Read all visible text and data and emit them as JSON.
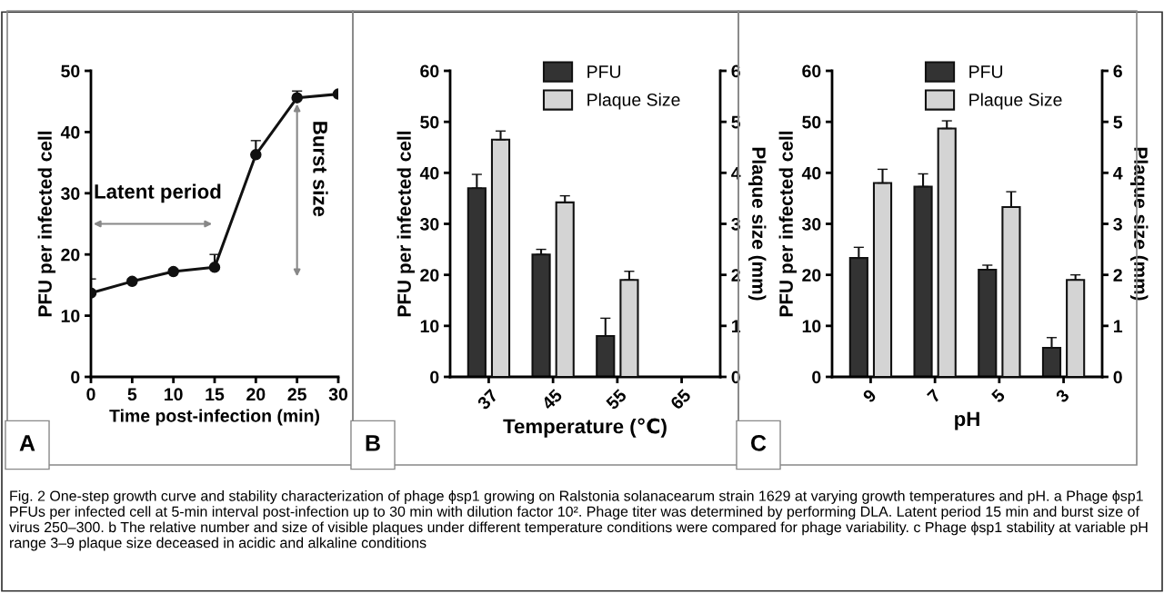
{
  "chart_data": [
    {
      "type": "line",
      "xlabel": "Time post-infection (min)",
      "ylabel": "PFU per infected cell",
      "x": [
        0,
        5,
        10,
        15,
        20,
        25,
        30
      ],
      "series": [
        {
          "color": "#111111",
          "values": [
            13.7,
            15.6,
            17.2,
            17.9,
            36.3,
            45.6,
            46.2
          ],
          "errors": [
            [
              13.7,
              16.0
            ],
            [
              15.6,
              16.0
            ],
            [
              17.2,
              17.6
            ],
            [
              17.9,
              20.0
            ],
            [
              36.3,
              38.6
            ],
            [
              45.6,
              46.7
            ],
            [
              46.2,
              46.5
            ]
          ]
        }
      ],
      "xlim": [
        0,
        30
      ],
      "xticks": [
        0,
        5,
        10,
        15,
        20,
        25,
        30
      ],
      "ylim": [
        0,
        50
      ],
      "yticks": [
        0,
        10,
        20,
        30,
        40,
        50
      ],
      "marker": "circle",
      "line_style": "solid",
      "grid": false,
      "legend": false,
      "annotations": [
        "A",
        "Latent period",
        "Burst size"
      ]
    },
    {
      "type": "bar",
      "xlabel": "Temperature (℃)",
      "ylabel": "PFU per infected cell",
      "y2label": "Plaque size (mm)",
      "categories": [
        "37",
        "45",
        "55",
        "65"
      ],
      "series": [
        {
          "name": "PFU",
          "color": "#333333",
          "values": [
            37,
            24,
            8,
            null
          ],
          "errors": [
            [
              37,
              39.7
            ],
            [
              24,
              25
            ],
            [
              8,
              11.5
            ],
            null
          ]
        },
        {
          "name": "Plaque Size",
          "color": "#d4d4d4",
          "axis": "y2",
          "values": [
            4.65,
            3.42,
            1.9,
            null
          ],
          "errors": [
            [
              4.65,
              4.82
            ],
            [
              3.42,
              3.55
            ],
            [
              1.9,
              2.07
            ],
            null
          ]
        }
      ],
      "ylim": [
        0,
        60
      ],
      "yticks": [
        0,
        10,
        20,
        30,
        40,
        50,
        60
      ],
      "y2lim": [
        0,
        6
      ],
      "y2ticks": [
        0,
        1,
        2,
        3,
        4,
        5,
        6
      ],
      "grid": false,
      "legend": "top",
      "annotations": [
        "B"
      ]
    },
    {
      "type": "bar",
      "xlabel": "pH",
      "ylabel": "PFU per infected cell",
      "y2label": "Plaque size (mm)",
      "categories": [
        "9",
        "7",
        "5",
        "3"
      ],
      "series": [
        {
          "name": "PFU",
          "color": "#333333",
          "values": [
            23.3,
            37.3,
            21,
            5.7
          ],
          "errors": [
            [
              23.3,
              25.4
            ],
            [
              37.3,
              39.8
            ],
            [
              21,
              21.9
            ],
            [
              5.7,
              7.7
            ]
          ]
        },
        {
          "name": "Plaque Size",
          "color": "#d4d4d4",
          "axis": "y2",
          "values": [
            3.8,
            4.87,
            3.33,
            1.9
          ],
          "errors": [
            [
              3.8,
              4.07
            ],
            [
              4.87,
              5.02
            ],
            [
              3.33,
              3.63
            ],
            [
              1.9,
              2.0
            ]
          ]
        }
      ],
      "ylim": [
        0,
        60
      ],
      "yticks": [
        0,
        10,
        20,
        30,
        40,
        50,
        60
      ],
      "y2lim": [
        0,
        6
      ],
      "y2ticks": [
        0,
        1,
        2,
        3,
        4,
        5,
        6
      ],
      "grid": false,
      "legend": "top",
      "annotations": [
        "C",
        "Fig. 2 One-step growth curve and stability characterization of phage ϕsp1 growing on Ralstonia solanacearum strain 1629 at varying growth temperatures and pH. a Phage ϕsp1 PFUs per infected cell at 5-min interval post-infection up to 30 min with dilution factor 10². Phage titer was determined by performing DLA. Latent period 15 min and burst size of virus 250–300. b The relative number and size of visible plaques under different temperature conditions were compared for phage variability. c Phage ϕsp1 stability at variable pH range 3–9 plaque size deceased in acidic and alkaline conditions"
      ]
    }
  ]
}
